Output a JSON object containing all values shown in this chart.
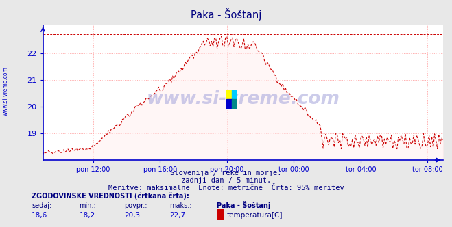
{
  "title": "Paka - Šoštanj",
  "bg_color": "#e8e8e8",
  "plot_bg_color": "#ffffff",
  "line_color": "#cc0000",
  "axis_color": "#0000cc",
  "grid_color": "#ffaaaa",
  "xlim_pts": 288,
  "ylim": [
    18.0,
    23.05
  ],
  "yticks": [
    19,
    20,
    21,
    22
  ],
  "ymin_display": 18.0,
  "xtick_labels": [
    "pon 12:00",
    "pon 16:00",
    "pon 20:00",
    "tor 00:00",
    "tor 04:00",
    "tor 08:00"
  ],
  "xtick_positions": [
    36,
    84,
    132,
    180,
    228,
    276
  ],
  "subtitle1": "Slovenija / reke in morje.",
  "subtitle2": "zadnji dan / 5 minut.",
  "subtitle3": "Meritve: maksimalne  Enote: metrične  Črta: 95% meritev",
  "watermark": "www.si-vreme.com",
  "label_hist": "ZGODOVINSKE VREDNOSTI (črtkana črta):",
  "col_headers": [
    "sedaj:",
    "min.:",
    "povpr.:",
    "maks.:",
    "Paka - Šoštanj"
  ],
  "col_values": [
    "18,6",
    "18,2",
    "20,3",
    "22,7",
    "temperatura[C]"
  ],
  "legend_color": "#cc0000",
  "max_dashed_y": 22.7,
  "sidebar_text": "www.si-vreme.com",
  "title_color": "#000080",
  "text_color": "#000080",
  "header_color": "#000080",
  "value_color": "#0000cc"
}
